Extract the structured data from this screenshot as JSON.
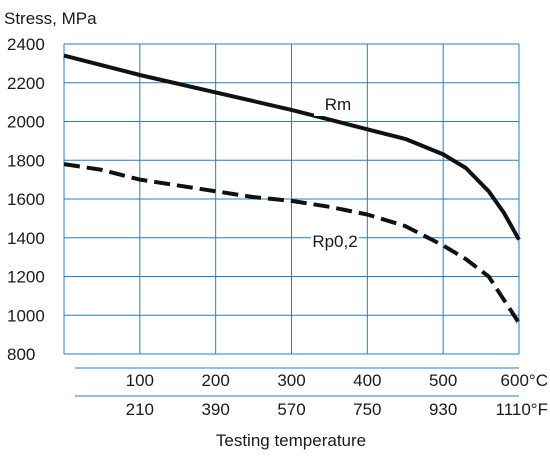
{
  "colors": {
    "grid": "#1f7fd0",
    "line": "#111111",
    "text": "#1a1a1a"
  },
  "chart_data": {
    "type": "line",
    "ylabel": "Stress, MPa",
    "xlabel": "Testing temperature",
    "ylim": [
      800,
      2400
    ],
    "xlim": [
      0,
      600
    ],
    "y_ticks": [
      "800",
      "1000",
      "1200",
      "1400",
      "1600",
      "1800",
      "2000",
      "2200",
      "2400"
    ],
    "x_ticks_c": [
      {
        "x": 100,
        "label": "100"
      },
      {
        "x": 200,
        "label": "200"
      },
      {
        "x": 300,
        "label": "300"
      },
      {
        "x": 400,
        "label": "400"
      },
      {
        "x": 500,
        "label": "500"
      },
      {
        "x": 600,
        "label": "600°C"
      }
    ],
    "x_ticks_f": [
      {
        "x": 100,
        "label": "210"
      },
      {
        "x": 200,
        "label": "390"
      },
      {
        "x": 300,
        "label": "570"
      },
      {
        "x": 400,
        "label": "750"
      },
      {
        "x": 500,
        "label": "930"
      },
      {
        "x": 600,
        "label": "1110°F"
      }
    ],
    "grid": true,
    "series": [
      {
        "name": "Rm",
        "style": "solid",
        "points": [
          [
            0,
            2340
          ],
          [
            100,
            2240
          ],
          [
            200,
            2150
          ],
          [
            300,
            2060
          ],
          [
            350,
            2010
          ],
          [
            400,
            1960
          ],
          [
            450,
            1910
          ],
          [
            500,
            1830
          ],
          [
            530,
            1760
          ],
          [
            560,
            1640
          ],
          [
            580,
            1530
          ],
          [
            600,
            1390
          ]
        ]
      },
      {
        "name": "Rp0,2",
        "style": "dashed",
        "points": [
          [
            0,
            1780
          ],
          [
            50,
            1750
          ],
          [
            100,
            1700
          ],
          [
            200,
            1640
          ],
          [
            250,
            1610
          ],
          [
            300,
            1590
          ],
          [
            350,
            1560
          ],
          [
            400,
            1520
          ],
          [
            450,
            1460
          ],
          [
            500,
            1360
          ],
          [
            530,
            1290
          ],
          [
            560,
            1200
          ],
          [
            600,
            960
          ]
        ]
      }
    ]
  }
}
